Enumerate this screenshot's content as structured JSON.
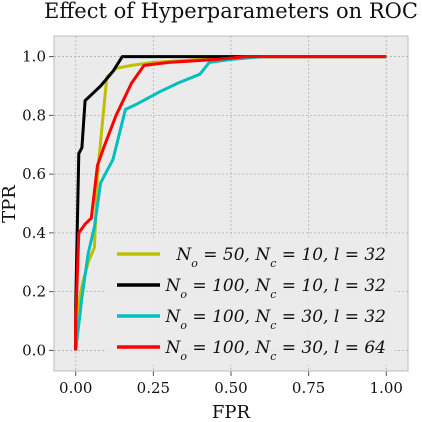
{
  "chart_data": {
    "type": "line",
    "title": "Effect of Hyperparameters on ROC",
    "xlabel": "FPR",
    "ylabel": "TPR",
    "xlim": [
      -0.07,
      1.07
    ],
    "ylim": [
      -0.07,
      1.07
    ],
    "x_ticks": [
      0.0,
      0.25,
      0.5,
      0.75,
      1.0
    ],
    "x_tick_labels": [
      "0.00",
      "0.25",
      "0.50",
      "0.75",
      "1.00"
    ],
    "y_ticks": [
      0.0,
      0.2,
      0.4,
      0.6,
      0.8,
      1.0
    ],
    "y_tick_labels": [
      "0.0",
      "0.2",
      "0.4",
      "0.6",
      "0.8",
      "1.0"
    ],
    "grid": true,
    "legend_position": "lower-right",
    "series": [
      {
        "name": "N_o = 50, N_c = 10, l = 32",
        "color": "#bfbf00",
        "x": [
          0.0,
          0.0,
          0.02,
          0.04,
          0.06,
          0.07,
          0.1,
          0.13,
          0.18,
          0.25,
          0.4,
          0.55,
          0.7,
          1.0
        ],
        "y": [
          0.0,
          0.1,
          0.22,
          0.3,
          0.35,
          0.6,
          0.93,
          0.96,
          0.97,
          0.98,
          0.99,
          1.0,
          1.0,
          1.0
        ]
      },
      {
        "name": "N_o = 100, N_c = 10, l = 32",
        "color": "#000000",
        "x": [
          0.0,
          0.0,
          0.01,
          0.02,
          0.03,
          0.05,
          0.08,
          0.12,
          0.15,
          0.25,
          0.4,
          0.55,
          0.7,
          1.0
        ],
        "y": [
          0.0,
          0.15,
          0.67,
          0.69,
          0.85,
          0.87,
          0.9,
          0.95,
          1.0,
          1.0,
          1.0,
          1.0,
          1.0,
          1.0
        ]
      },
      {
        "name": "N_o = 100, N_c = 30, l = 32",
        "color": "#00bfbf",
        "x": [
          0.0,
          0.02,
          0.04,
          0.06,
          0.08,
          0.12,
          0.16,
          0.2,
          0.27,
          0.33,
          0.4,
          0.43,
          0.5,
          0.6,
          1.0
        ],
        "y": [
          0.0,
          0.18,
          0.33,
          0.42,
          0.57,
          0.65,
          0.82,
          0.84,
          0.88,
          0.91,
          0.94,
          0.98,
          0.99,
          1.0,
          1.0
        ]
      },
      {
        "name": "N_o = 100, N_c = 30, l = 64",
        "color": "#ff0000",
        "x": [
          0.0,
          0.0,
          0.01,
          0.03,
          0.05,
          0.07,
          0.09,
          0.13,
          0.18,
          0.22,
          0.3,
          0.45,
          0.55,
          1.0
        ],
        "y": [
          0.0,
          0.1,
          0.4,
          0.43,
          0.45,
          0.63,
          0.69,
          0.8,
          0.91,
          0.97,
          0.98,
          0.99,
          1.0,
          1.0
        ]
      }
    ],
    "legend_entries": [
      {
        "n_o": "50",
        "n_c": "10",
        "l": "32"
      },
      {
        "n_o": "100",
        "n_c": "10",
        "l": "32"
      },
      {
        "n_o": "100",
        "n_c": "30",
        "l": "32"
      },
      {
        "n_o": "100",
        "n_c": "30",
        "l": "64"
      }
    ],
    "legend_symbols": {
      "n": "N",
      "sub_o": "o",
      "sub_c": "c",
      "l": "l",
      "eq": " = ",
      "sep": ", "
    },
    "colors": {
      "plot_bg": "#ebebeb",
      "grid": "#b0b0b0",
      "axes_edge": "#bcbcbc",
      "legend_bg": "#ebebeb"
    }
  }
}
